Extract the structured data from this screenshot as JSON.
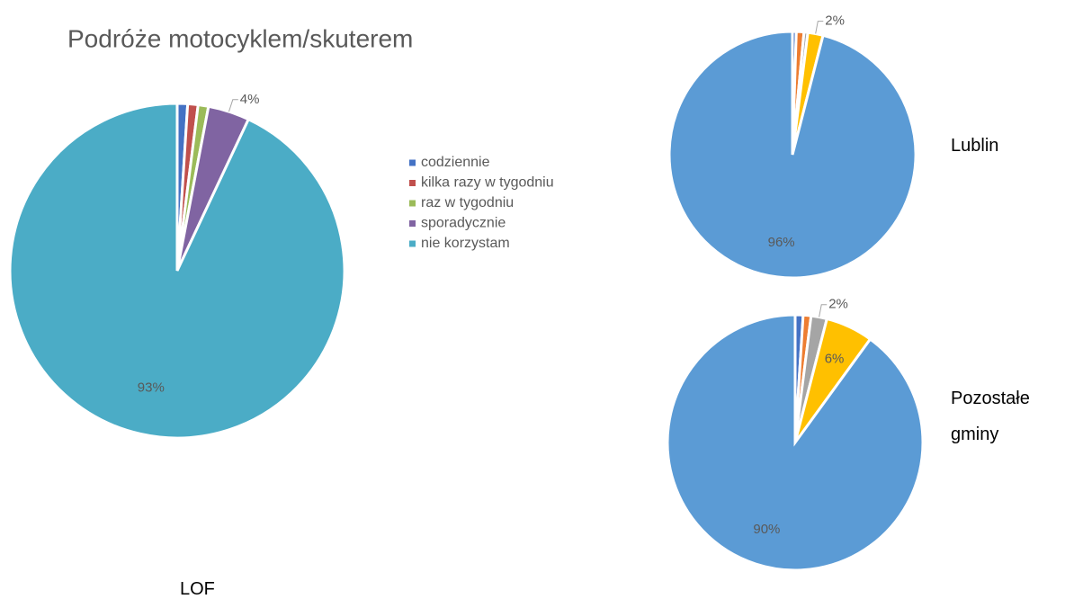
{
  "chart_data": [
    {
      "type": "pie",
      "title": "Podróże motocyklem/skuterem",
      "label": "LOF",
      "categories": [
        "codziennie",
        "kilka razy w tygodniu",
        "raz w tygodniu",
        "sporadycznie",
        "nie korzystam"
      ],
      "values": [
        1,
        1,
        1,
        4,
        93
      ],
      "value_labels": [
        null,
        null,
        null,
        "4%",
        "93%"
      ],
      "colors": [
        "#4472c4",
        "#c0504d",
        "#9bbb59",
        "#8064a2",
        "#4bacc6"
      ],
      "legend": "right"
    },
    {
      "type": "pie",
      "label": "Lublin",
      "values": [
        0.5,
        1,
        0.5,
        2,
        96
      ],
      "value_labels": [
        null,
        null,
        null,
        "2%",
        "96%"
      ],
      "colors": [
        "#4472c4",
        "#ed7d31",
        "#a5a5a5",
        "#ffc000",
        "#5b9bd5"
      ]
    },
    {
      "type": "pie",
      "label": "Pozostałe gminy",
      "values": [
        1,
        1,
        2,
        6,
        90
      ],
      "value_labels": [
        null,
        null,
        "2%",
        "6%",
        "90%"
      ],
      "colors": [
        "#4472c4",
        "#ed7d31",
        "#a5a5a5",
        "#ffc000",
        "#5b9bd5"
      ]
    }
  ]
}
